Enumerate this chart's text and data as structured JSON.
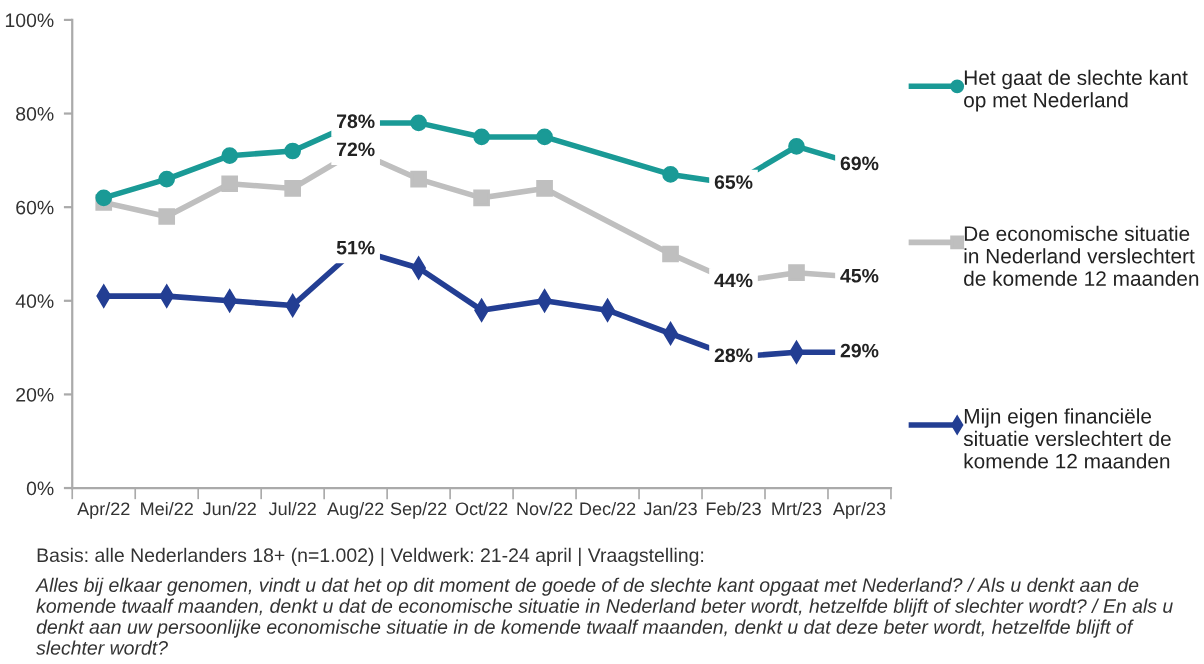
{
  "chart_data": {
    "type": "line",
    "categories": [
      "Apr/22",
      "Mei/22",
      "Jun/22",
      "Jul/22",
      "Aug/22",
      "Sep/22",
      "Oct/22",
      "Nov/22",
      "Dec/22",
      "Jan/23",
      "Feb/23",
      "Mrt/23",
      "Apr/23"
    ],
    "series": [
      {
        "name": "Het gaat de slechte kant op met Nederland",
        "color": "#1a9a96",
        "marker": "circle",
        "values": [
          62,
          66,
          71,
          72,
          78,
          78,
          75,
          75,
          null,
          67,
          65,
          73,
          69
        ],
        "value_labels": [
          null,
          null,
          null,
          null,
          "78%",
          null,
          null,
          null,
          null,
          null,
          "65%",
          null,
          "69%"
        ]
      },
      {
        "name": "De economische situatie in Nederland verslechtert de komende 12 maanden",
        "color": "#bfbfbf",
        "marker": "square",
        "values": [
          61,
          58,
          65,
          64,
          72,
          66,
          62,
          64,
          null,
          50,
          44,
          46,
          45
        ],
        "value_labels": [
          null,
          null,
          null,
          null,
          "72%",
          null,
          null,
          null,
          null,
          null,
          "44%",
          null,
          "45%"
        ]
      },
      {
        "name": "Mijn eigen financiële situatie verslechtert de komende 12 maanden",
        "color": "#233e93",
        "marker": "diamond",
        "values": [
          41,
          41,
          40,
          39,
          51,
          47,
          38,
          40,
          38,
          33,
          28,
          29,
          29
        ],
        "value_labels": [
          null,
          null,
          null,
          null,
          "51%",
          null,
          null,
          null,
          null,
          null,
          "28%",
          null,
          "29%"
        ]
      }
    ],
    "ylim": [
      0,
      100
    ],
    "yticks": [
      {
        "value": 0,
        "label": "0%"
      },
      {
        "value": 20,
        "label": "20%"
      },
      {
        "value": 40,
        "label": "40%"
      },
      {
        "value": 60,
        "label": "60%"
      },
      {
        "value": 80,
        "label": "80%"
      },
      {
        "value": 100,
        "label": "100%"
      }
    ],
    "grid": false,
    "legend": "right",
    "line_style": "solid",
    "annotations": [
      "Basis: alle Nederlanders 18+ (n=1.002) | Veldwerk: 21-24 april | Vraagstelling:",
      "Alles bij elkaar genomen, vindt u dat het op dit moment de goede of de slechte kant opgaat met Nederland? / Als u denkt aan de komende twaalf maanden, denkt u dat de economische situatie in Nederland beter wordt, hetzelfde blijft of slechter wordt? / En als u denkt aan uw persoonlijke economische situatie in de komende twaalf maanden, denkt u dat deze beter wordt, hetzelfde blijft of slechter wordt?"
    ]
  }
}
